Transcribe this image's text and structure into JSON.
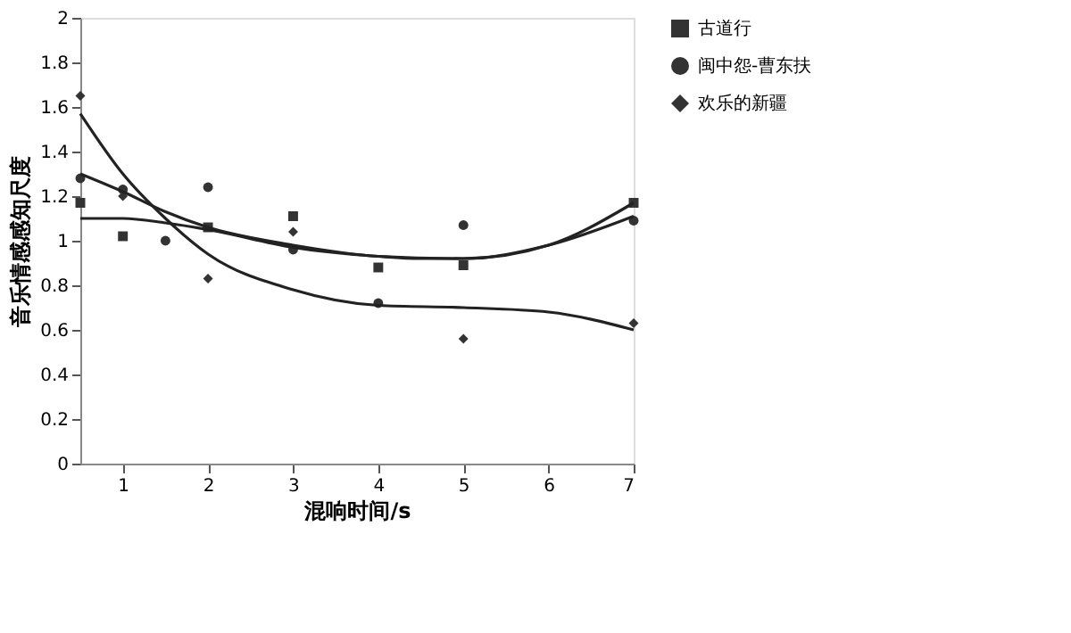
{
  "chart_data": {
    "type": "scatter",
    "xlabel": "混响时间/s",
    "ylabel": "音乐情感感知尺度",
    "xlim": [
      0.5,
      7
    ],
    "xticks": [
      1,
      2,
      3,
      4,
      5,
      6,
      7
    ],
    "ylim": [
      0,
      2
    ],
    "yticks": [
      0,
      0.2,
      0.4,
      0.6,
      0.8,
      1,
      1.2,
      1.4,
      1.6,
      1.8,
      2
    ],
    "grid": false,
    "legend": "right",
    "series": [
      {
        "name": "古道行",
        "marker": "square",
        "color": "#333333",
        "x": [
          0.5,
          1,
          2,
          3,
          4,
          5,
          7
        ],
        "values": [
          1.17,
          1.02,
          1.06,
          1.11,
          0.88,
          0.89,
          1.17
        ]
      },
      {
        "name": "闽中怨-曹东扶",
        "marker": "circle",
        "color": "#333333",
        "x": [
          0.5,
          1,
          1.5,
          2,
          3,
          4,
          5,
          7
        ],
        "values": [
          1.28,
          1.23,
          1.0,
          1.24,
          0.96,
          0.72,
          1.07,
          1.09
        ]
      },
      {
        "name": "欢乐的新疆",
        "marker": "diamond",
        "color": "#333333",
        "x": [
          0.5,
          1,
          2,
          3,
          5,
          7
        ],
        "values": [
          1.65,
          1.2,
          0.83,
          1.04,
          0.56,
          0.63
        ]
      },
      {
        "type": "line",
        "color": "#222222",
        "x": [
          0.5,
          1,
          1.5,
          2,
          3,
          4,
          4.5,
          5,
          6,
          7
        ],
        "values": [
          1.1,
          1.1,
          1.08,
          1.05,
          0.97,
          0.93,
          0.92,
          0.92,
          0.98,
          1.17
        ]
      },
      {
        "type": "line",
        "color": "#222222",
        "x": [
          0.5,
          1,
          1.5,
          2,
          3,
          4,
          5,
          6,
          7
        ],
        "values": [
          1.3,
          1.22,
          1.13,
          1.06,
          0.98,
          0.93,
          0.92,
          0.98,
          1.11
        ]
      },
      {
        "type": "line",
        "color": "#222222",
        "x": [
          0.5,
          1,
          1.5,
          2,
          3,
          4,
          5,
          6,
          7
        ],
        "values": [
          1.57,
          1.3,
          1.1,
          0.94,
          0.78,
          0.71,
          0.7,
          0.68,
          0.6
        ]
      }
    ]
  }
}
